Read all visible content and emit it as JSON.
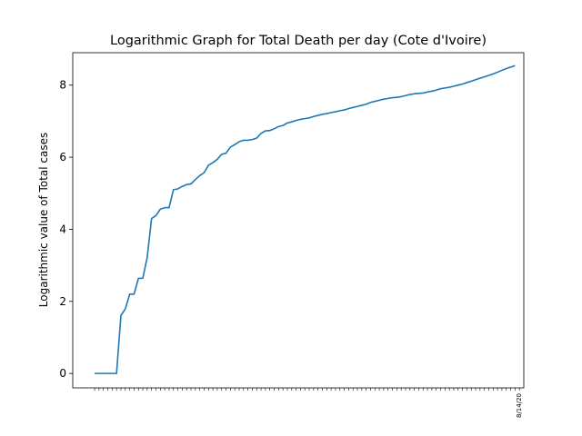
{
  "chart_data": {
    "type": "line",
    "title": "Logarithmic Graph for Total Death per day (Cote d'Ivoire)",
    "xlabel": "",
    "ylabel": "Logarithmic value of Total cases",
    "ylim": [
      -0.4,
      8.9
    ],
    "yticks": [
      0,
      2,
      4,
      6,
      8
    ],
    "grid": false,
    "line_color": "#1f77b4",
    "x_is_index": true,
    "xlim": [
      -5,
      98
    ],
    "last_xtick_label": "8/14/20",
    "xtick_count": 98,
    "series": [
      {
        "values": [
          0,
          0,
          0,
          0,
          0,
          0,
          1.61,
          1.79,
          2.2,
          2.2,
          2.64,
          2.64,
          3.22,
          4.3,
          4.38,
          4.56,
          4.6,
          4.6,
          5.1,
          5.12,
          5.19,
          5.24,
          5.26,
          5.38,
          5.49,
          5.57,
          5.78,
          5.85,
          5.94,
          6.08,
          6.11,
          6.28,
          6.35,
          6.43,
          6.47,
          6.47,
          6.49,
          6.53,
          6.66,
          6.73,
          6.74,
          6.79,
          6.85,
          6.88,
          6.95,
          6.98,
          7.02,
          7.05,
          7.07,
          7.09,
          7.13,
          7.16,
          7.19,
          7.21,
          7.24,
          7.26,
          7.29,
          7.31,
          7.35,
          7.38,
          7.41,
          7.44,
          7.47,
          7.52,
          7.55,
          7.58,
          7.61,
          7.63,
          7.65,
          7.66,
          7.68,
          7.71,
          7.74,
          7.76,
          7.77,
          7.78,
          7.81,
          7.83,
          7.86,
          7.9,
          7.92,
          7.94,
          7.97,
          8.0,
          8.03,
          8.07,
          8.11,
          8.15,
          8.19,
          8.23,
          8.27,
          8.31,
          8.36,
          8.41,
          8.46,
          8.5,
          8.54
        ]
      }
    ]
  }
}
